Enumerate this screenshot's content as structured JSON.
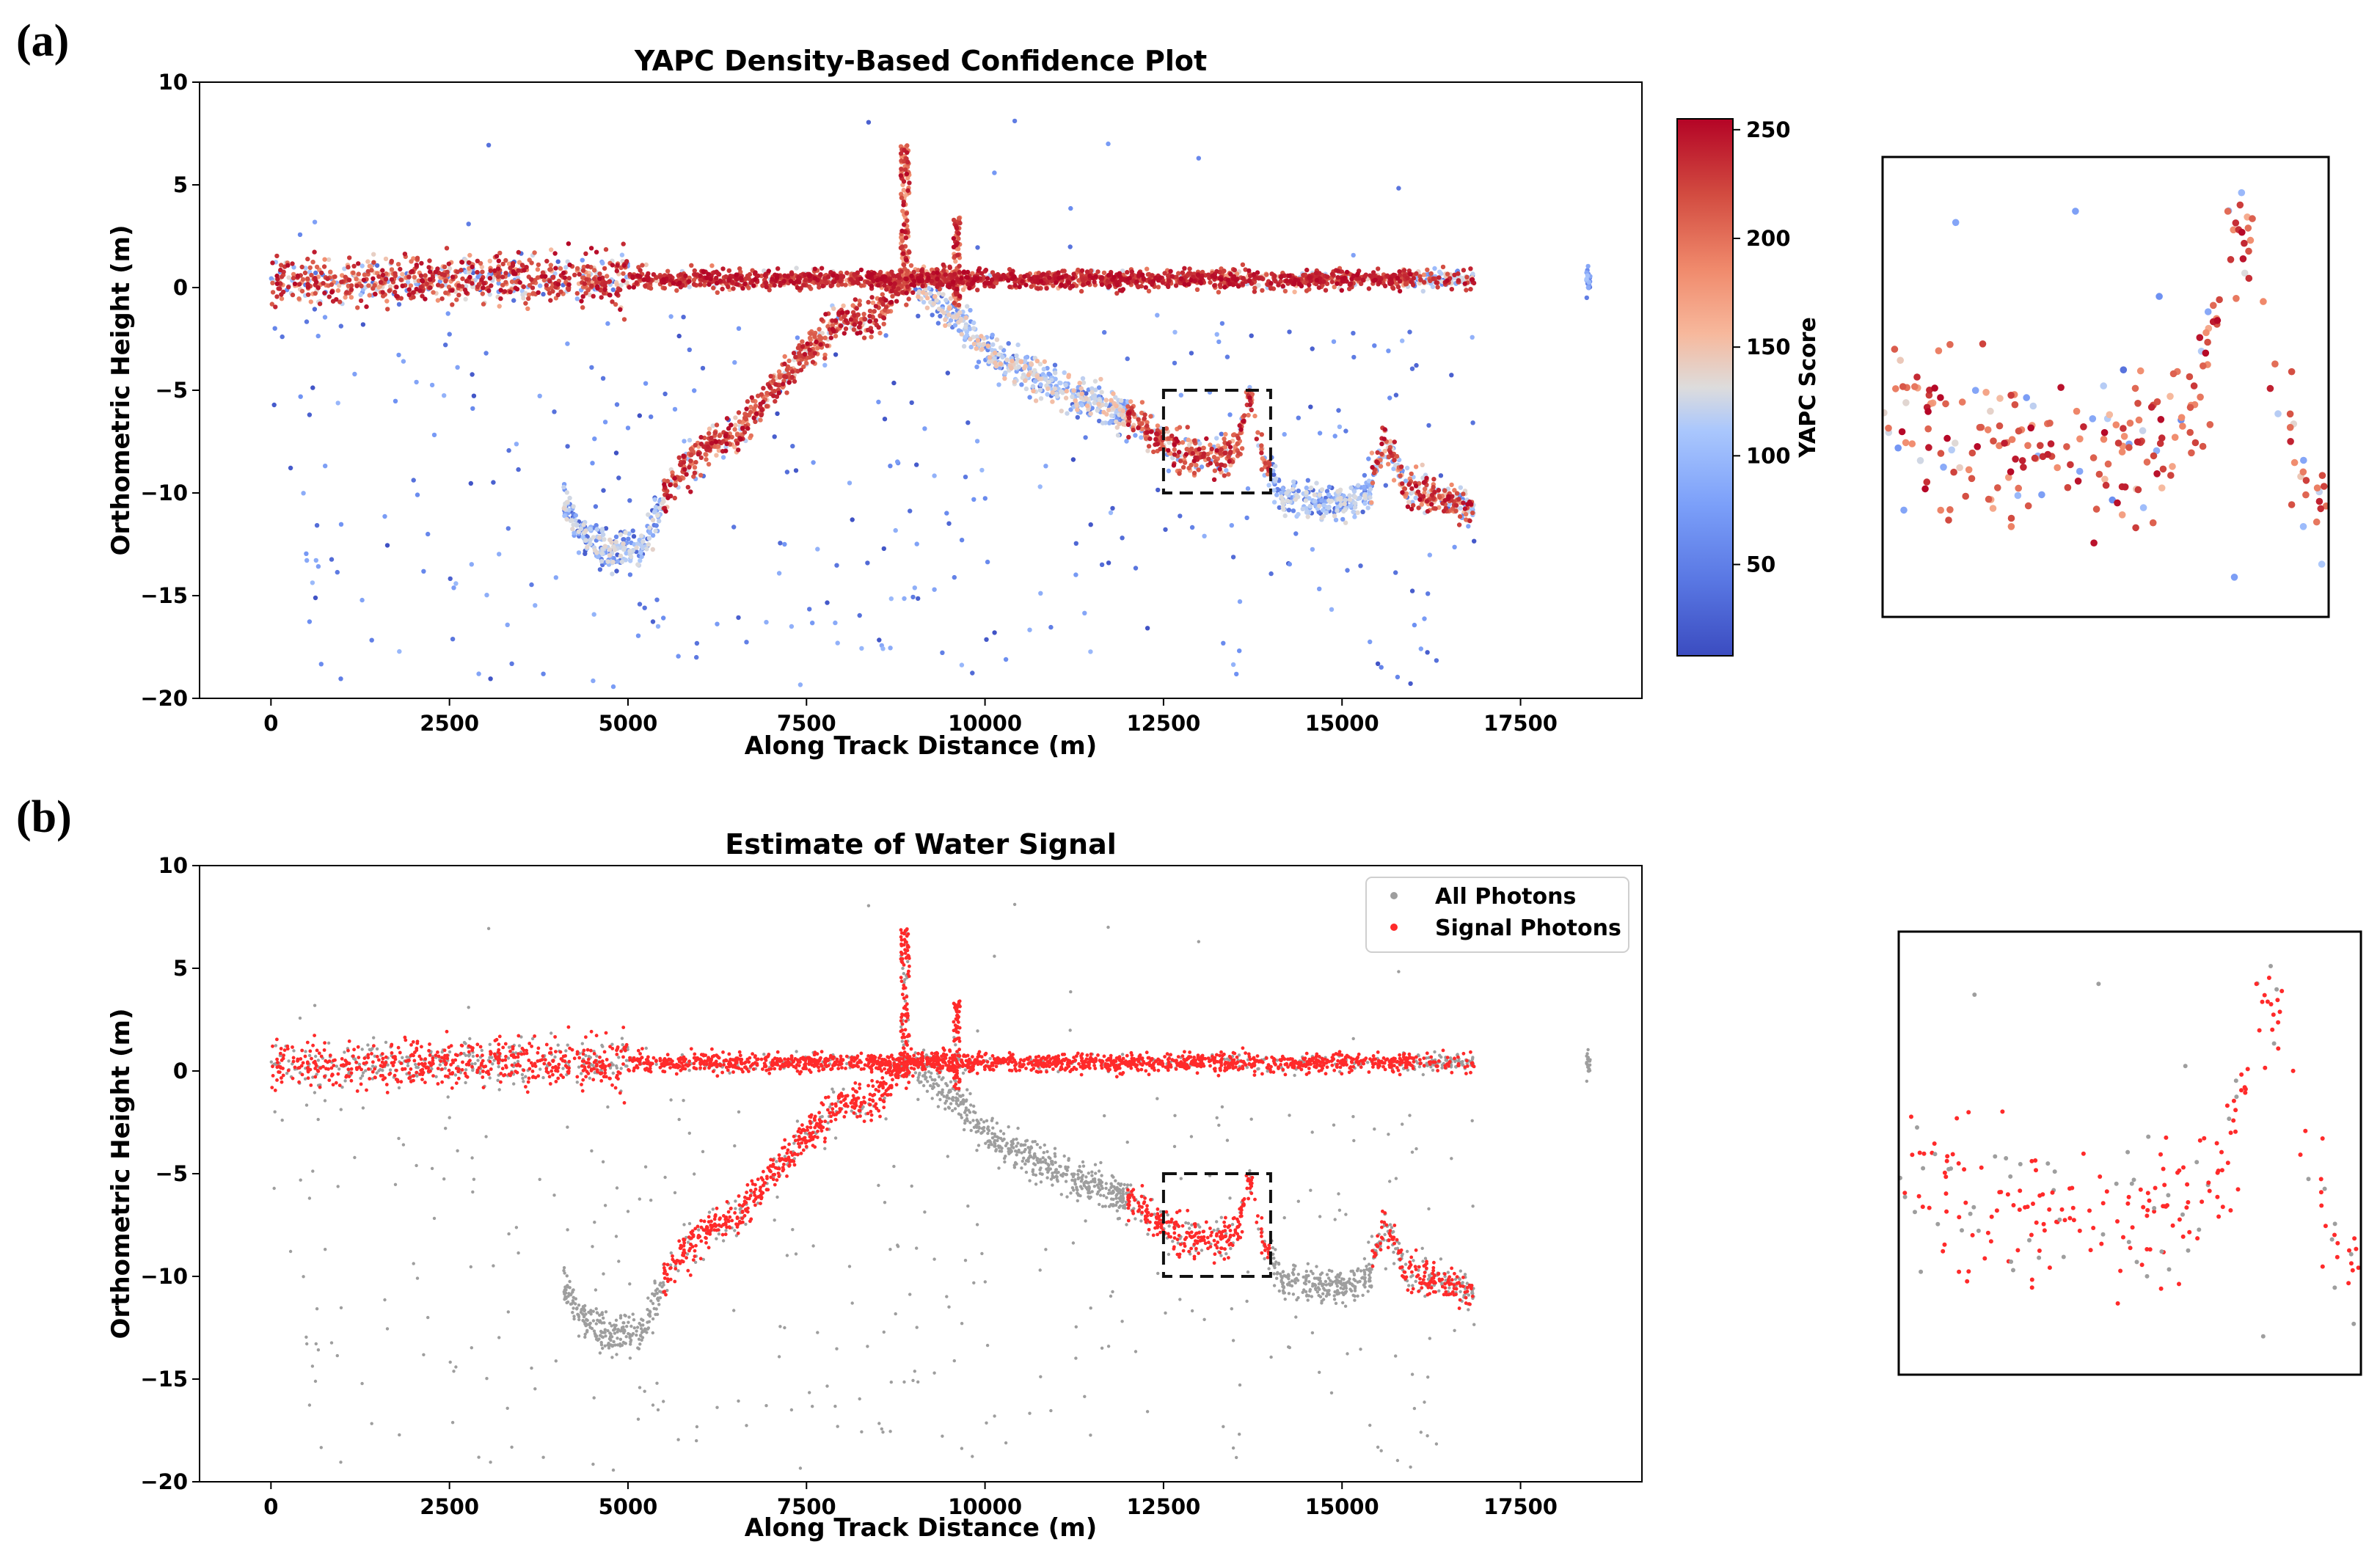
{
  "figure": {
    "panel_a_label": "(a)",
    "panel_b_label": "(b)"
  },
  "chart_data": [
    {
      "type": "scatter",
      "title": "YAPC Density-Based Confidence Plot",
      "xlabel": "Along Track Distance (m)",
      "ylabel": "Orthometric Height (m)",
      "xlim": [
        -1000,
        19200
      ],
      "ylim": [
        -20,
        10
      ],
      "xticks": [
        0,
        2500,
        5000,
        7500,
        10000,
        12500,
        15000,
        17500
      ],
      "xtick_labels": [
        "0",
        "2500",
        "5000",
        "7500",
        "10000",
        "12500",
        "15000",
        "17500"
      ],
      "yticks": [
        10,
        5,
        0,
        -5,
        -10,
        -15,
        -20
      ],
      "ytick_labels": [
        "10",
        "5",
        "0",
        "−5",
        "−10",
        "−15",
        "−20"
      ],
      "color_by": "YAPC score",
      "colorbar": {
        "label": "YAPC Score",
        "range": [
          8,
          255
        ],
        "ticks": [
          50,
          100,
          150,
          200,
          250
        ],
        "tick_labels": [
          "50",
          "100",
          "150",
          "200",
          "250"
        ],
        "colormap": [
          "#3b4cc0",
          "#6f92f3",
          "#aac7fd",
          "#dddcdc",
          "#f7b89c",
          "#f08a6c",
          "#d24b40",
          "#b40426"
        ]
      },
      "highlight_box": {
        "x": [
          12500,
          14000
        ],
        "y": [
          -10,
          -5
        ]
      },
      "profiles": {
        "surface": {
          "x": [
            0,
            16850
          ],
          "y": 0.4
        },
        "land": {
          "x": [
            8800,
            9650
          ],
          "y_range": [
            -1,
            8
          ]
        },
        "seabed": {
          "x": [
            4100,
            4500,
            5200,
            5600,
            6100,
            6500,
            7000,
            7500,
            8000,
            8400,
            8850,
            9600,
            10200,
            11000,
            12000,
            12700,
            13200,
            13500,
            13720,
            13900,
            14200,
            15000,
            15350,
            15600,
            15900,
            16300,
            16850
          ],
          "y": [
            -10.5,
            -12.5,
            -12.8,
            -9.5,
            -7.5,
            -7.2,
            -5,
            -3.2,
            -1.5,
            -1.7,
            0.5,
            -1.5,
            -3.5,
            -4.8,
            -6.3,
            -8,
            -8.3,
            -8.1,
            -5.3,
            -8.5,
            -10.3,
            -10.6,
            -10.2,
            -7.4,
            -9.8,
            -10.2,
            -10.8
          ]
        }
      },
      "noise_photons": "sparse low-confidence photons scattered between -20 and 10 m"
    },
    {
      "type": "scatter",
      "title": "Estimate of Water Signal",
      "xlabel": "Along Track Distance (m)",
      "ylabel": "Orthometric Height (m)",
      "xlim": [
        -1000,
        19200
      ],
      "ylim": [
        -20,
        10
      ],
      "xticks": [
        0,
        2500,
        5000,
        7500,
        10000,
        12500,
        15000,
        17500
      ],
      "xtick_labels": [
        "0",
        "2500",
        "5000",
        "7500",
        "10000",
        "12500",
        "15000",
        "17500"
      ],
      "yticks": [
        10,
        5,
        0,
        -5,
        -10,
        -15,
        -20
      ],
      "ytick_labels": [
        "10",
        "5",
        "0",
        "−5",
        "−10",
        "−15",
        "−20"
      ],
      "series": [
        {
          "name": "All Photons",
          "color": "#9e9e9e"
        },
        {
          "name": "Signal Photons",
          "color": "#ff2a2a"
        }
      ],
      "legend_position": "top-right",
      "highlight_box": {
        "x": [
          12500,
          14000
        ],
        "y": [
          -10,
          -5
        ]
      }
    }
  ],
  "insets": [
    {
      "name": "zoom of panel (a) highlight box",
      "x": [
        12500,
        14000
      ],
      "y": [
        -10,
        -5
      ]
    },
    {
      "name": "zoom of panel (b) highlight box",
      "x": [
        12500,
        14000
      ],
      "y": [
        -10,
        -5
      ]
    }
  ]
}
